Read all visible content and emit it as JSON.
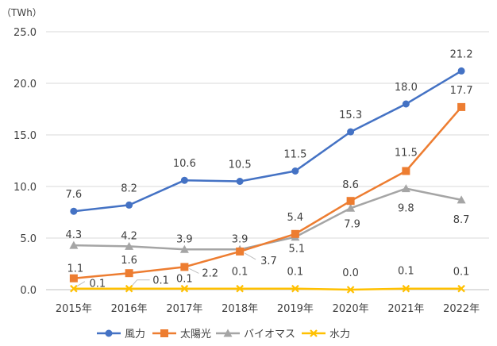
{
  "chart_data": {
    "type": "line",
    "unit_label": "（TWh）",
    "categories": [
      "2015年",
      "2016年",
      "2017年",
      "2018年",
      "2019年",
      "2020年",
      "2021年",
      "2022年"
    ],
    "ylim": [
      0,
      25
    ],
    "yticks": [
      "0.0",
      "5.0",
      "10.0",
      "15.0",
      "20.0",
      "25.0"
    ],
    "grid": true,
    "legend_position": "bottom",
    "series": [
      {
        "name": "風力",
        "color": "#4472c4",
        "marker": "circle",
        "values": [
          7.6,
          8.2,
          10.6,
          10.5,
          11.5,
          15.3,
          18.0,
          21.2
        ],
        "labels": [
          "7.6",
          "8.2",
          "10.6",
          "10.5",
          "11.5",
          "15.3",
          "18.0",
          "21.2"
        ]
      },
      {
        "name": "太陽光",
        "color": "#ed7d31",
        "marker": "square",
        "values": [
          1.1,
          1.6,
          2.2,
          3.7,
          5.4,
          8.6,
          11.5,
          17.7
        ],
        "labels": [
          "1.1",
          "1.6",
          "2.2",
          "3.7",
          "5.4",
          "8.6",
          "11.5",
          "17.7"
        ]
      },
      {
        "name": "バイオマス",
        "color": "#a5a5a5",
        "marker": "triangle",
        "values": [
          4.3,
          4.2,
          3.9,
          3.9,
          5.1,
          7.9,
          9.8,
          8.7
        ],
        "labels": [
          "4.3",
          "4.2",
          "3.9",
          "3.9",
          "5.1",
          "7.9",
          "9.8",
          "8.7"
        ]
      },
      {
        "name": "水力",
        "color": "#ffc000",
        "marker": "x",
        "values": [
          0.1,
          0.1,
          0.1,
          0.1,
          0.1,
          0.0,
          0.1,
          0.1
        ],
        "labels": [
          "0.1",
          "0.1",
          "0.1",
          "0.1",
          "0.1",
          "0.0",
          "0.1",
          "0.1"
        ]
      }
    ]
  }
}
